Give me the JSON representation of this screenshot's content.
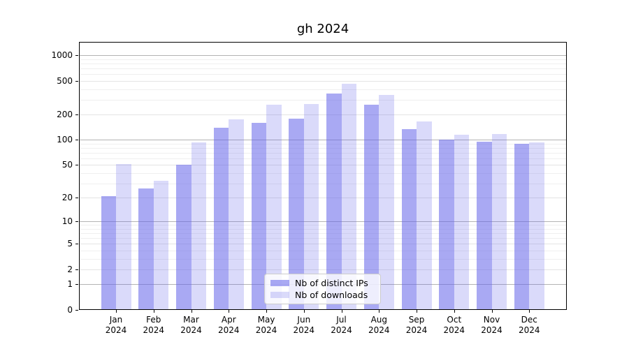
{
  "title": "gh 2024",
  "chart_data": {
    "type": "bar",
    "title": "gh 2024",
    "x_months": [
      "Jan",
      "Feb",
      "Mar",
      "Apr",
      "May",
      "Jun",
      "Jul",
      "Aug",
      "Sep",
      "Oct",
      "Nov",
      "Dec"
    ],
    "x_year": "2024",
    "series": [
      {
        "name": "Nb of distinct IPs",
        "color": "rgba(99,99,233,0.55)",
        "values": [
          21,
          26,
          50,
          140,
          160,
          178,
          355,
          260,
          135,
          100,
          95,
          90
        ]
      },
      {
        "name": "Nb of downloads",
        "color": "rgba(99,99,233,0.24)",
        "values": [
          51,
          32,
          94,
          175,
          260,
          265,
          460,
          340,
          165,
          115,
          117,
          94
        ]
      }
    ],
    "y_ticks": [
      0,
      1,
      2,
      5,
      10,
      20,
      50,
      100,
      200,
      500,
      1000
    ],
    "y_scale": "log10(1+x)",
    "ylim": [
      0,
      1440
    ],
    "grid": {
      "major": [
        1,
        10,
        100,
        1000
      ],
      "minor": [
        2,
        5,
        20,
        50,
        200,
        500
      ],
      "sub_base": [
        3,
        4,
        6,
        7,
        8,
        9
      ],
      "sub_decades": [
        1,
        10,
        100
      ],
      "major_color": "#b3b3b3",
      "minor_color": "#e4e4e4",
      "sub_color": "#efefef"
    },
    "legend_position": "lower center",
    "grid_on": true
  }
}
